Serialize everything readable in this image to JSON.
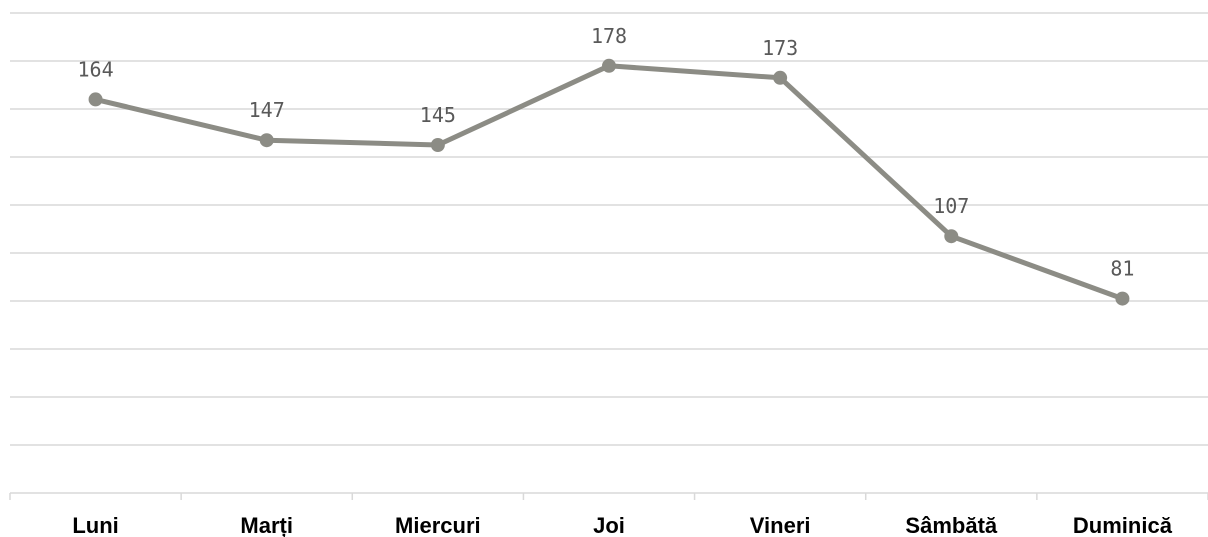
{
  "chart_data": {
    "type": "line",
    "categories": [
      "Luni",
      "Marți",
      "Miercuri",
      "Joi",
      "Vineri",
      "Sâmbătă",
      "Duminică"
    ],
    "series": [
      {
        "values": [
          164,
          147,
          145,
          178,
          173,
          107,
          81
        ],
        "color": "#8c8c85"
      }
    ],
    "title": "",
    "xlabel": "",
    "ylabel": "",
    "ylim": [
      0,
      200
    ],
    "y_tick_step": 20,
    "y_tick_labels_shown": false,
    "grid": true,
    "legend": "none",
    "data_labels": true,
    "marker": "circle",
    "colors": {
      "grid": "#d9d9d9",
      "line": "#8c8c85",
      "data_label": "#595959",
      "category_label": "#000000"
    }
  }
}
